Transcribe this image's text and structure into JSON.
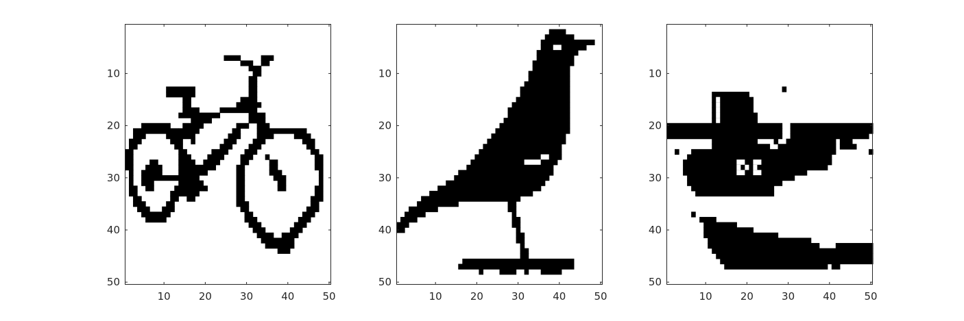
{
  "colors": {
    "foreground": "#000000",
    "background": "#ffffff",
    "axis": "#262626"
  },
  "chart_data": [
    {
      "type": "heatmap",
      "title": "",
      "xlabel": "",
      "ylabel": "",
      "xlim": [
        0.5,
        50.5
      ],
      "ylim": [
        0.5,
        50.5
      ],
      "y_reversed": true,
      "xticks": [
        10,
        20,
        30,
        40,
        50
      ],
      "yticks": [
        10,
        20,
        30,
        40,
        50
      ],
      "xtick_labels": [
        "10",
        "20",
        "30",
        "40",
        "50"
      ],
      "ytick_labels": [
        "10",
        "20",
        "30",
        "40",
        "50"
      ],
      "grid": false,
      "image_size": [
        50,
        50
      ],
      "subject": "bicycle",
      "black_pixel_spans": [
        [
          7,
          25,
          28
        ],
        [
          7,
          34,
          36
        ],
        [
          8,
          29,
          31
        ],
        [
          8,
          34,
          35
        ],
        [
          9,
          31,
          33
        ],
        [
          10,
          32,
          33
        ],
        [
          11,
          31,
          32
        ],
        [
          12,
          31,
          32
        ],
        [
          13,
          11,
          17
        ],
        [
          13,
          31,
          32
        ],
        [
          14,
          11,
          17
        ],
        [
          14,
          31,
          32
        ],
        [
          15,
          15,
          16
        ],
        [
          15,
          29,
          32
        ],
        [
          16,
          15,
          16
        ],
        [
          16,
          28,
          33
        ],
        [
          17,
          15,
          18
        ],
        [
          17,
          24,
          32
        ],
        [
          18,
          14,
          23
        ],
        [
          18,
          31,
          34
        ],
        [
          19,
          17,
          21
        ],
        [
          19,
          31,
          34
        ],
        [
          20,
          5,
          11
        ],
        [
          20,
          15,
          19
        ],
        [
          20,
          28,
          30
        ],
        [
          20,
          33,
          35
        ],
        [
          21,
          3,
          13
        ],
        [
          21,
          14,
          18
        ],
        [
          21,
          27,
          28
        ],
        [
          21,
          33,
          44
        ],
        [
          22,
          3,
          5
        ],
        [
          22,
          11,
          17
        ],
        [
          22,
          26,
          28
        ],
        [
          22,
          33,
          36
        ],
        [
          22,
          42,
          45
        ],
        [
          23,
          2,
          4
        ],
        [
          23,
          12,
          14
        ],
        [
          23,
          17,
          17
        ],
        [
          23,
          25,
          27
        ],
        [
          23,
          32,
          34
        ],
        [
          23,
          44,
          46
        ],
        [
          24,
          2,
          3
        ],
        [
          24,
          13,
          14
        ],
        [
          24,
          24,
          26
        ],
        [
          24,
          31,
          33
        ],
        [
          24,
          45,
          46
        ],
        [
          25,
          1,
          2
        ],
        [
          25,
          14,
          15
        ],
        [
          25,
          22,
          25
        ],
        [
          25,
          30,
          32
        ],
        [
          25,
          46,
          47
        ],
        [
          26,
          1,
          2
        ],
        [
          26,
          14,
          16
        ],
        [
          26,
          21,
          24
        ],
        [
          26,
          29,
          31
        ],
        [
          26,
          35,
          35
        ],
        [
          26,
          47,
          48
        ],
        [
          27,
          1,
          2
        ],
        [
          27,
          7,
          8
        ],
        [
          27,
          14,
          17
        ],
        [
          27,
          20,
          23
        ],
        [
          27,
          29,
          30
        ],
        [
          27,
          36,
          37
        ],
        [
          27,
          47,
          48
        ],
        [
          28,
          1,
          2
        ],
        [
          28,
          6,
          9
        ],
        [
          28,
          14,
          22
        ],
        [
          28,
          28,
          29
        ],
        [
          28,
          36,
          37
        ],
        [
          28,
          47,
          48
        ],
        [
          29,
          2,
          2
        ],
        [
          29,
          5,
          9
        ],
        [
          29,
          14,
          20
        ],
        [
          29,
          28,
          29
        ],
        [
          29,
          36,
          38
        ],
        [
          29,
          48,
          48
        ],
        [
          30,
          2,
          2
        ],
        [
          30,
          5,
          18
        ],
        [
          30,
          28,
          29
        ],
        [
          30,
          37,
          39
        ],
        [
          30,
          48,
          48
        ],
        [
          31,
          2,
          2
        ],
        [
          31,
          5,
          7
        ],
        [
          31,
          14,
          19
        ],
        [
          31,
          28,
          29
        ],
        [
          31,
          38,
          39
        ],
        [
          31,
          48,
          48
        ],
        [
          32,
          2,
          3
        ],
        [
          32,
          6,
          7
        ],
        [
          32,
          13,
          20
        ],
        [
          32,
          28,
          29
        ],
        [
          32,
          38,
          39
        ],
        [
          32,
          47,
          48
        ],
        [
          33,
          2,
          3
        ],
        [
          33,
          12,
          18
        ],
        [
          33,
          28,
          29
        ],
        [
          33,
          47,
          48
        ],
        [
          34,
          3,
          4
        ],
        [
          34,
          12,
          13
        ],
        [
          34,
          16,
          17
        ],
        [
          34,
          28,
          29
        ],
        [
          34,
          46,
          48
        ],
        [
          35,
          3,
          5
        ],
        [
          35,
          11,
          12
        ],
        [
          35,
          28,
          30
        ],
        [
          35,
          46,
          47
        ],
        [
          36,
          4,
          6
        ],
        [
          36,
          10,
          12
        ],
        [
          36,
          29,
          30
        ],
        [
          36,
          45,
          47
        ],
        [
          37,
          5,
          11
        ],
        [
          37,
          30,
          31
        ],
        [
          37,
          44,
          46
        ],
        [
          38,
          6,
          10
        ],
        [
          38,
          30,
          32
        ],
        [
          38,
          43,
          45
        ],
        [
          39,
          31,
          33
        ],
        [
          39,
          42,
          44
        ],
        [
          40,
          32,
          34
        ],
        [
          40,
          41,
          43
        ],
        [
          41,
          33,
          36
        ],
        [
          41,
          39,
          42
        ],
        [
          42,
          34,
          41
        ],
        [
          43,
          35,
          41
        ],
        [
          44,
          38,
          40
        ]
      ]
    },
    {
      "type": "heatmap",
      "title": "",
      "xlabel": "",
      "ylabel": "",
      "xlim": [
        0.5,
        50.5
      ],
      "ylim": [
        0.5,
        50.5
      ],
      "y_reversed": true,
      "xticks": [
        10,
        20,
        30,
        40,
        50
      ],
      "yticks": [
        10,
        20,
        30,
        40,
        50
      ],
      "xtick_labels": [
        "10",
        "20",
        "30",
        "40",
        "50"
      ],
      "ytick_labels": [
        "10",
        "20",
        "30",
        "40",
        "50"
      ],
      "grid": false,
      "image_size": [
        50,
        50
      ],
      "subject": "bird",
      "black_pixel_spans": [
        [
          2,
          38,
          41
        ],
        [
          3,
          37,
          43
        ],
        [
          4,
          36,
          48
        ],
        [
          5,
          36,
          46
        ],
        [
          6,
          35,
          44
        ],
        [
          7,
          35,
          43
        ],
        [
          8,
          34,
          43
        ],
        [
          9,
          34,
          42
        ],
        [
          10,
          33,
          42
        ],
        [
          11,
          33,
          42
        ],
        [
          12,
          32,
          42
        ],
        [
          13,
          31,
          42
        ],
        [
          14,
          31,
          42
        ],
        [
          15,
          30,
          42
        ],
        [
          16,
          29,
          42
        ],
        [
          17,
          28,
          42
        ],
        [
          18,
          28,
          42
        ],
        [
          19,
          27,
          42
        ],
        [
          20,
          26,
          42
        ],
        [
          21,
          25,
          42
        ],
        [
          22,
          24,
          41
        ],
        [
          23,
          23,
          41
        ],
        [
          24,
          22,
          40
        ],
        [
          25,
          21,
          40
        ],
        [
          26,
          20,
          40
        ],
        [
          27,
          19,
          39
        ],
        [
          28,
          18,
          38
        ],
        [
          29,
          16,
          38
        ],
        [
          30,
          15,
          37
        ],
        [
          31,
          13,
          36
        ],
        [
          32,
          11,
          35
        ],
        [
          33,
          9,
          33
        ],
        [
          34,
          7,
          30
        ],
        [
          35,
          6,
          15
        ],
        [
          35,
          28,
          29
        ],
        [
          36,
          4,
          10
        ],
        [
          36,
          28,
          29
        ],
        [
          37,
          3,
          7
        ],
        [
          37,
          29,
          29
        ],
        [
          38,
          2,
          5
        ],
        [
          38,
          29,
          30
        ],
        [
          39,
          1,
          3
        ],
        [
          39,
          29,
          30
        ],
        [
          40,
          1,
          2
        ],
        [
          40,
          30,
          30
        ],
        [
          41,
          30,
          31
        ],
        [
          42,
          30,
          31
        ],
        [
          43,
          31,
          31
        ],
        [
          44,
          31,
          32
        ],
        [
          45,
          31,
          32
        ],
        [
          46,
          17,
          43
        ],
        [
          47,
          16,
          43
        ],
        [
          48,
          21,
          21
        ],
        [
          48,
          26,
          29
        ],
        [
          48,
          32,
          32
        ],
        [
          48,
          36,
          40
        ]
      ],
      "white_pixel_spans": [
        [
          5,
          39,
          40
        ],
        [
          27,
          32,
          35
        ],
        [
          26,
          36,
          37
        ]
      ]
    },
    {
      "type": "heatmap",
      "title": "",
      "xlabel": "",
      "ylabel": "",
      "xlim": [
        0.5,
        50.5
      ],
      "ylim": [
        0.5,
        50.5
      ],
      "y_reversed": true,
      "xticks": [
        10,
        20,
        30,
        40,
        50
      ],
      "yticks": [
        10,
        20,
        30,
        40,
        50
      ],
      "xtick_labels": [
        "10",
        "20",
        "30",
        "40",
        "50"
      ],
      "ytick_labels": [
        "10",
        "20",
        "30",
        "40",
        "50"
      ],
      "grid": false,
      "image_size": [
        50,
        50
      ],
      "subject": "boat",
      "black_pixel_spans": [
        [
          13,
          29,
          29
        ],
        [
          14,
          12,
          20
        ],
        [
          15,
          12,
          21
        ],
        [
          16,
          12,
          21
        ],
        [
          17,
          12,
          21
        ],
        [
          18,
          12,
          22
        ],
        [
          19,
          12,
          22
        ],
        [
          20,
          1,
          28
        ],
        [
          20,
          31,
          50
        ],
        [
          21,
          1,
          28
        ],
        [
          21,
          31,
          50
        ],
        [
          22,
          1,
          28
        ],
        [
          22,
          31,
          49
        ],
        [
          23,
          12,
          22
        ],
        [
          23,
          27,
          27
        ],
        [
          23,
          30,
          41
        ],
        [
          23,
          43,
          45
        ],
        [
          24,
          12,
          25
        ],
        [
          24,
          28,
          41
        ],
        [
          24,
          43,
          46
        ],
        [
          25,
          3,
          3
        ],
        [
          25,
          7,
          41
        ],
        [
          25,
          50,
          50
        ],
        [
          26,
          6,
          40
        ],
        [
          27,
          5,
          40
        ],
        [
          28,
          5,
          39
        ],
        [
          29,
          5,
          34
        ],
        [
          30,
          6,
          31
        ],
        [
          31,
          6,
          28
        ],
        [
          32,
          7,
          26
        ],
        [
          33,
          8,
          26
        ],
        [
          37,
          7,
          7
        ],
        [
          38,
          9,
          12
        ],
        [
          39,
          10,
          17
        ],
        [
          40,
          10,
          21
        ],
        [
          41,
          10,
          27
        ],
        [
          42,
          11,
          35
        ],
        [
          43,
          11,
          37
        ],
        [
          43,
          42,
          50
        ],
        [
          44,
          12,
          50
        ],
        [
          45,
          13,
          50
        ],
        [
          46,
          14,
          50
        ],
        [
          47,
          15,
          39
        ],
        [
          47,
          41,
          42
        ]
      ],
      "white_pixel_spans": [
        [
          15,
          13,
          13
        ],
        [
          16,
          13,
          13
        ],
        [
          17,
          13,
          13
        ],
        [
          18,
          13,
          13
        ],
        [
          19,
          13,
          13
        ],
        [
          27,
          18,
          19
        ],
        [
          28,
          18,
          18
        ],
        [
          28,
          20,
          20
        ],
        [
          29,
          18,
          19
        ],
        [
          27,
          22,
          23
        ],
        [
          28,
          22,
          22
        ],
        [
          29,
          22,
          23
        ]
      ]
    }
  ]
}
